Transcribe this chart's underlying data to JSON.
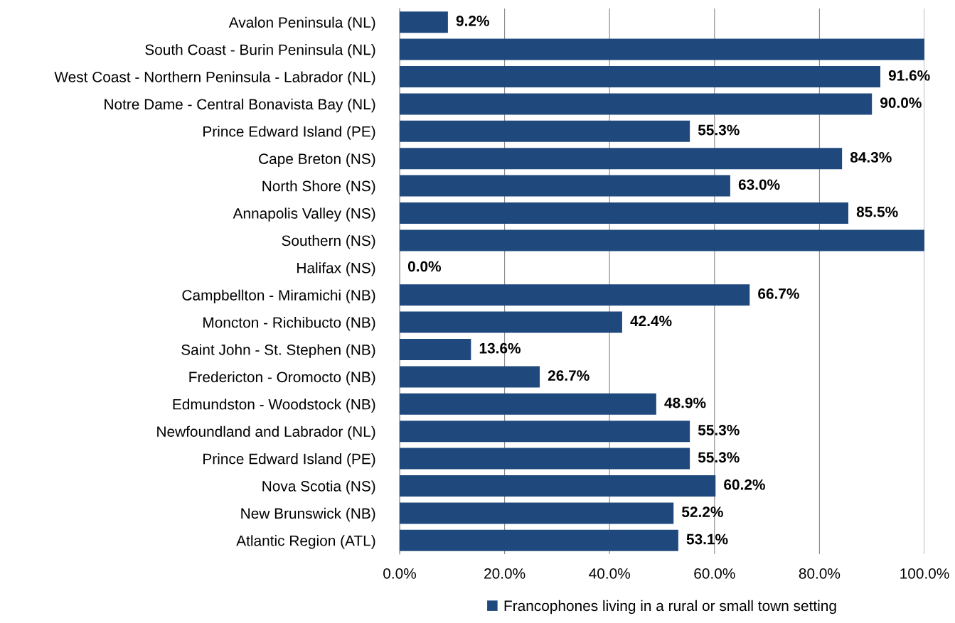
{
  "chart_data": {
    "type": "bar",
    "orientation": "horizontal",
    "categories": [
      "Avalon Peninsula (NL)",
      "South Coast - Burin Peninsula (NL)",
      "West Coast - Northern Peninsula - Labrador (NL)",
      "Notre Dame - Central Bonavista Bay (NL)",
      "Prince Edward Island (PE)",
      "Cape Breton (NS)",
      "North Shore (NS)",
      "Annapolis Valley (NS)",
      "Southern (NS)",
      "Halifax (NS)",
      "Campbellton - Miramichi (NB)",
      "Moncton - Richibucto (NB)",
      "Saint John - St. Stephen (NB)",
      "Fredericton - Oromocto (NB)",
      "Edmundston - Woodstock (NB)",
      "Newfoundland and Labrador (NL)",
      "Prince Edward Island (PE)",
      "Nova Scotia (NS)",
      "New Brunswick (NB)",
      "Atlantic Region (ATL)"
    ],
    "series": [
      {
        "name": "Francophones living in a rural or small town setting",
        "color": "#1f497d",
        "values": [
          9.2,
          100,
          91.6,
          90.0,
          55.3,
          84.3,
          63.0,
          85.5,
          100,
          0.0,
          66.7,
          42.4,
          13.6,
          26.7,
          48.9,
          55.3,
          55.3,
          60.2,
          52.2,
          53.1
        ],
        "value_labels": [
          "9.2%",
          null,
          "91.6%",
          "90.0%",
          "55.3%",
          "84.3%",
          "63.0%",
          "85.5%",
          null,
          "0.0%",
          "66.7%",
          "42.4%",
          "13.6%",
          "26.7%",
          "48.9%",
          "55.3%",
          "55.3%",
          "60.2%",
          "52.2%",
          "53.1%"
        ]
      }
    ],
    "xlim": [
      0,
      100
    ],
    "xticks": [
      {
        "value": 0,
        "label": "0.0%"
      },
      {
        "value": 20,
        "label": "20.0%"
      },
      {
        "value": 40,
        "label": "40.0%"
      },
      {
        "value": 60,
        "label": "60.0%"
      },
      {
        "value": 80,
        "label": "80.0%"
      },
      {
        "value": 100,
        "label": "100.0%"
      }
    ],
    "grid": "x",
    "legend": "bottom"
  }
}
